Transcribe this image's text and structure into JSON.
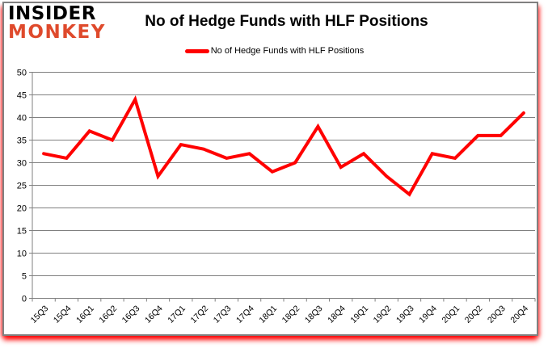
{
  "page": {
    "background": "#ffffff",
    "frame_border_color": "#808080",
    "frame_glow_color": "#ff0000"
  },
  "logo": {
    "line1": "INSIDER",
    "line2": "MONKEY",
    "line1_color": "#000000",
    "line2_color": "#df4a2c"
  },
  "header": {
    "title": "No of Hedge Funds with HLF Positions"
  },
  "legend": {
    "label": "No of Hedge Funds with HLF Positions",
    "swatch_color": "#ff0000"
  },
  "chart_data": {
    "type": "line",
    "title": "No of Hedge Funds with HLF Positions",
    "xlabel": "",
    "ylabel": "",
    "categories": [
      "15Q3",
      "15Q4",
      "16Q1",
      "16Q2",
      "16Q3",
      "16Q4",
      "17Q1",
      "17Q2",
      "17Q3",
      "17Q4",
      "18Q1",
      "18Q2",
      "18Q3",
      "18Q4",
      "19Q1",
      "19Q2",
      "19Q3",
      "19Q4",
      "20Q1",
      "20Q2",
      "20Q3",
      "20Q4"
    ],
    "series": [
      {
        "name": "No of Hedge Funds with HLF Positions",
        "color": "#ff0000",
        "values": [
          32,
          31,
          37,
          35,
          44,
          27,
          34,
          33,
          31,
          32,
          28,
          30,
          38,
          29,
          32,
          27,
          23,
          32,
          31,
          36,
          36,
          41
        ]
      }
    ],
    "ylim": [
      0,
      50
    ],
    "ytick_step": 5,
    "grid": true,
    "legend_position": "top-center",
    "gridline_color": "#808080",
    "axis_color": "#808080",
    "label_color": "#000000"
  }
}
